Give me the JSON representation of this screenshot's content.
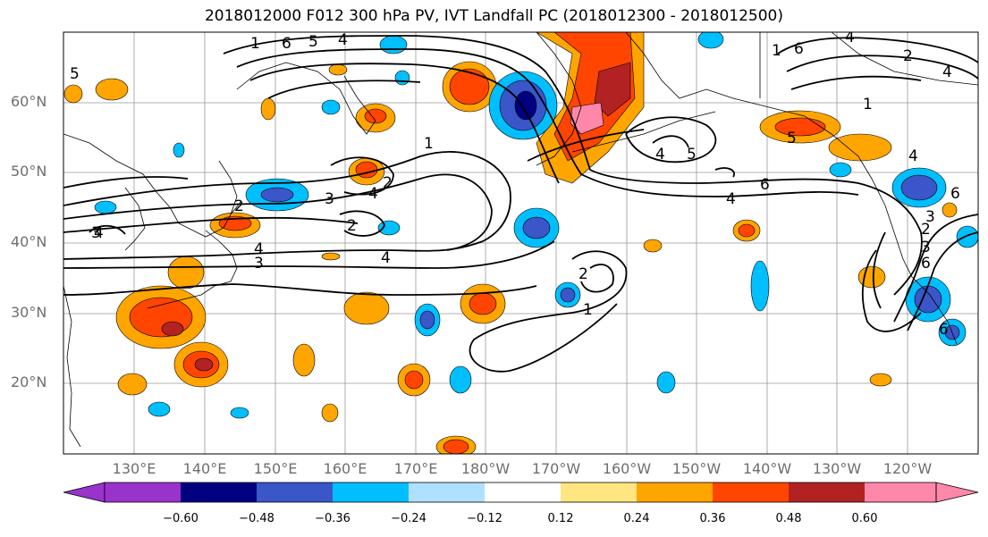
{
  "title": "2018012000 F012 300 hPa PV, IVT Landfall PC (2018012300 - 2018012500)",
  "map": {
    "lat_labels": [
      "60°N",
      "50°N",
      "40°N",
      "30°N",
      "20°N"
    ],
    "lon_labels": [
      "130°E",
      "140°E",
      "150°E",
      "160°E",
      "170°E",
      "180°W",
      "170°W",
      "160°W",
      "150°W",
      "140°W",
      "130°W",
      "120°W"
    ],
    "contour_labels": [
      "1",
      "6",
      "5",
      "4",
      "5",
      "2",
      "4",
      "3",
      "2",
      "1",
      "4",
      "5",
      "4",
      "6",
      "1",
      "6",
      "4",
      "3",
      "2",
      "3",
      "4",
      "4",
      "2",
      "4",
      "3",
      "2",
      "1",
      "4",
      "6",
      "6",
      "5",
      "4",
      "1",
      "2",
      "6",
      "3"
    ]
  },
  "colorbar": {
    "ticks": [
      "−0.60",
      "−0.48",
      "−0.36",
      "−0.24",
      "−0.12",
      "0.12",
      "0.24",
      "0.36",
      "0.48",
      "0.60"
    ],
    "colors": [
      "#9933cc",
      "#000080",
      "#3a56c8",
      "#00bfff",
      "#b0e0ff",
      "#ffffff",
      "#ffe680",
      "#ffa500",
      "#ff4500",
      "#b22222",
      "#ff88aa"
    ]
  }
}
